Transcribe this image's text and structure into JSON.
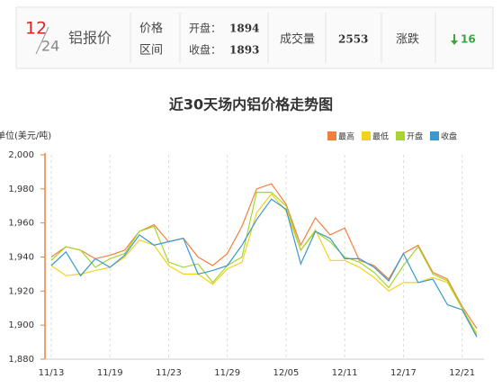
{
  "header": {
    "month": "12",
    "day": "24",
    "title": "铝报价",
    "price_label": "价格",
    "range_label": "区间",
    "open_label": "开盘：",
    "open": 1894,
    "close_label": "收盘：",
    "close": 1893,
    "volume_label": "成交量",
    "volume": 2553,
    "change_label": "涨跌",
    "change": 16
  },
  "chart_data": {
    "type": "line",
    "title": "近30天场内铝价格走势图",
    "y_label": "单位(美元/吨)",
    "categories": [
      "11/13",
      null,
      null,
      null,
      "11/19",
      null,
      null,
      null,
      "11/23",
      null,
      null,
      null,
      "11/29",
      null,
      null,
      null,
      "12/05",
      null,
      null,
      null,
      "12/11",
      null,
      null,
      null,
      "12/17",
      null,
      null,
      null,
      "12/21",
      null
    ],
    "series": [
      {
        "name": "最高",
        "color": "#f07f3c",
        "values": [
          1940,
          1946,
          1944,
          1939,
          1941,
          1944,
          1955,
          1959,
          1949,
          1951,
          1940,
          1935,
          1942,
          1958,
          1980,
          1983,
          1971,
          1947,
          1963,
          1953,
          1957,
          1938,
          1935,
          1927,
          1942,
          1947,
          1931,
          1927,
          1911,
          1898
        ]
      },
      {
        "name": "最低",
        "color": "#f3d21c",
        "values": [
          1935,
          1929,
          1930,
          1932,
          1934,
          1940,
          1950,
          1947,
          1935,
          1930,
          1930,
          1924,
          1933,
          1937,
          1966,
          1977,
          1967,
          1944,
          1956,
          1938,
          1938,
          1934,
          1928,
          1920,
          1925,
          1925,
          1928,
          1925,
          1910,
          1895
        ]
      },
      {
        "name": "开盘",
        "color": "#a6d62a",
        "values": [
          1938,
          1946,
          1944,
          1934,
          1939,
          1942,
          1955,
          1958,
          1937,
          1934,
          1936,
          1925,
          1935,
          1940,
          1978,
          1978,
          1970,
          1944,
          1955,
          1949,
          1940,
          1937,
          1931,
          1922,
          1935,
          1946,
          1930,
          1926,
          1910,
          1894
        ]
      },
      {
        "name": "收盘",
        "color": "#3a98d0",
        "values": [
          1935,
          1943,
          1929,
          1939,
          1934,
          1941,
          1953,
          1947,
          1949,
          1951,
          1930,
          1932,
          1935,
          1947,
          1962,
          1974,
          1968,
          1936,
          1955,
          1951,
          1939,
          1939,
          1934,
          1926,
          1942,
          1925,
          1927,
          1912,
          1909,
          1893
        ]
      }
    ],
    "ylim": [
      1880,
      2000
    ],
    "yticks": [
      {
        "value": 1880,
        "label": "1,880"
      },
      {
        "value": 1900,
        "label": "1,900"
      },
      {
        "value": 1920,
        "label": "1,920"
      },
      {
        "value": 1940,
        "label": "1,940"
      },
      {
        "value": 1960,
        "label": "1,960"
      },
      {
        "value": 1980,
        "label": "1,980"
      },
      {
        "value": 2000,
        "label": "2,000"
      }
    ],
    "grid": "x",
    "legend": "top-right"
  }
}
